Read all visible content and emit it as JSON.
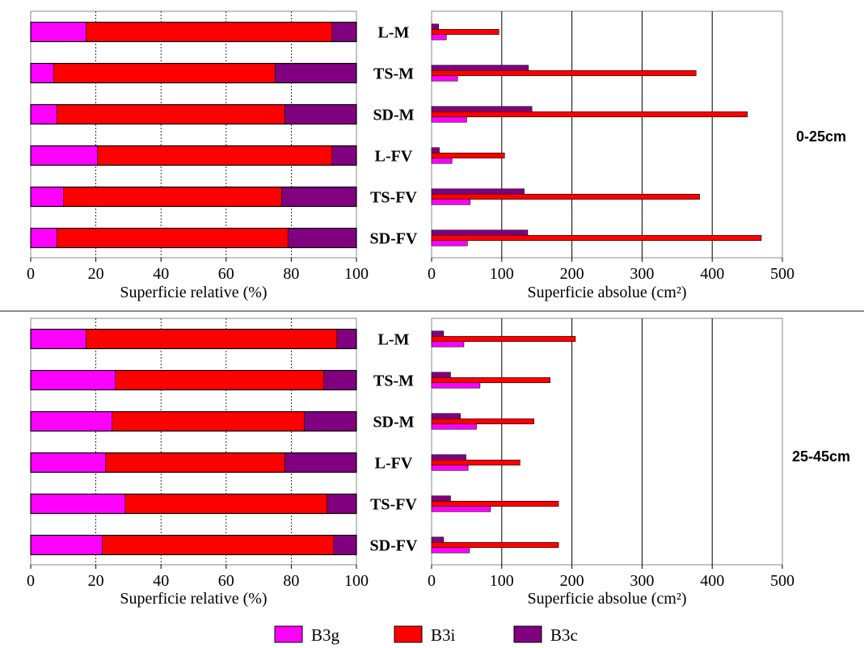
{
  "colors": {
    "B3g": "#ff00ff",
    "B3i": "#ff0000",
    "B3c": "#800080",
    "frame": "#888888",
    "grid": "#000000",
    "separator": "#666666"
  },
  "legend": {
    "position": "bottom-center",
    "items": [
      {
        "key": "B3g",
        "label": "B3g"
      },
      {
        "key": "B3i",
        "label": "B3i"
      },
      {
        "key": "B3c",
        "label": "B3c"
      }
    ]
  },
  "chart_data": [
    {
      "type": "bar",
      "subtype": "horizontal-stacked-100",
      "panel": "top-left",
      "depth_label": "0-25cm",
      "categories": [
        "L-M",
        "TS-M",
        "SD-M",
        "L-FV",
        "TS-FV",
        "SD-FV"
      ],
      "series": [
        {
          "name": "B3g",
          "values": [
            17,
            7,
            8,
            20.5,
            10,
            8
          ]
        },
        {
          "name": "B3i",
          "values": [
            75.5,
            68,
            70,
            72,
            67,
            71
          ]
        },
        {
          "name": "B3c",
          "values": [
            7.5,
            25,
            22,
            7.5,
            23,
            21
          ]
        }
      ],
      "xlabel": "Superficie relative (%)",
      "xlim": [
        0,
        100
      ],
      "xticks": [
        0,
        20,
        40,
        60,
        80,
        100
      ],
      "grid": "vertical-dotted"
    },
    {
      "type": "bar",
      "subtype": "horizontal-grouped",
      "panel": "top-right",
      "depth_label": "0-25cm",
      "categories": [
        "L-M",
        "TS-M",
        "SD-M",
        "L-FV",
        "TS-FV",
        "SD-FV"
      ],
      "series": [
        {
          "name": "B3c",
          "values": [
            10,
            138,
            143,
            11,
            132,
            137
          ]
        },
        {
          "name": "B3i",
          "values": [
            96,
            377,
            450,
            104,
            382,
            470
          ]
        },
        {
          "name": "B3g",
          "values": [
            21,
            37,
            50,
            29,
            55,
            51
          ]
        }
      ],
      "xlabel": "Superficie absolue (cm²)",
      "xlim": [
        0,
        500
      ],
      "xticks": [
        0,
        100,
        200,
        300,
        400,
        500
      ],
      "grid": "vertical-solid"
    },
    {
      "type": "bar",
      "subtype": "horizontal-stacked-100",
      "panel": "bottom-left",
      "depth_label": "25-45cm",
      "categories": [
        "L-M",
        "TS-M",
        "SD-M",
        "L-FV",
        "TS-FV",
        "SD-FV"
      ],
      "series": [
        {
          "name": "B3g",
          "values": [
            17,
            26,
            25,
            23,
            29,
            22
          ]
        },
        {
          "name": "B3i",
          "values": [
            77,
            64,
            59,
            55,
            62,
            71
          ]
        },
        {
          "name": "B3c",
          "values": [
            6,
            10,
            16,
            22,
            9,
            7
          ]
        }
      ],
      "xlabel": "Superficie relative (%)",
      "xlim": [
        0,
        100
      ],
      "xticks": [
        0,
        20,
        40,
        60,
        80,
        100
      ],
      "grid": "vertical-dotted"
    },
    {
      "type": "bar",
      "subtype": "horizontal-grouped",
      "panel": "bottom-right",
      "depth_label": "25-45cm",
      "categories": [
        "L-M",
        "TS-M",
        "SD-M",
        "L-FV",
        "TS-FV",
        "SD-FV"
      ],
      "series": [
        {
          "name": "B3c",
          "values": [
            17,
            27,
            41,
            49,
            27,
            17
          ]
        },
        {
          "name": "B3i",
          "values": [
            205,
            169,
            146,
            126,
            181,
            181
          ]
        },
        {
          "name": "B3g",
          "values": [
            46,
            69,
            64,
            52,
            84,
            54
          ]
        }
      ],
      "xlabel": "Superficie absolue (cm²)",
      "xlim": [
        0,
        500
      ],
      "xticks": [
        0,
        100,
        200,
        300,
        400,
        500
      ],
      "grid": "vertical-solid"
    }
  ]
}
